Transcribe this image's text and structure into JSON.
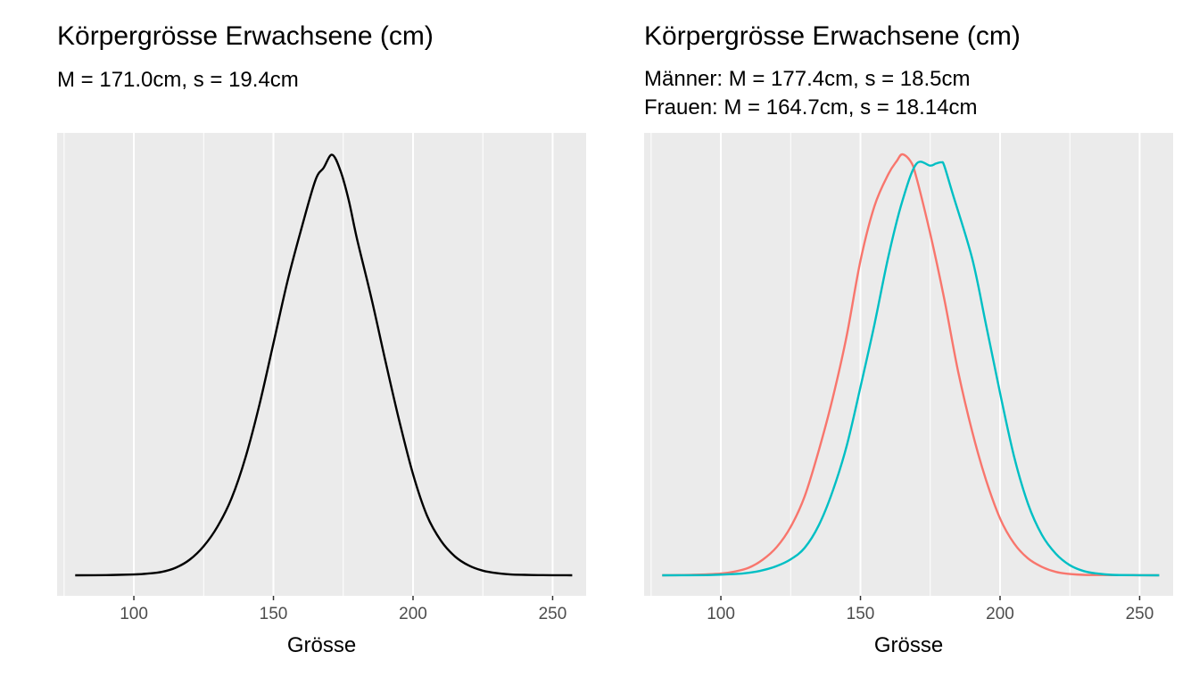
{
  "chart_data": [
    {
      "type": "line",
      "title": "Körpergrösse Erwachsene (cm)",
      "subtitle": [
        "M = 171.0cm, s = 19.4cm"
      ],
      "xlabel": "Grösse",
      "ylabel": "",
      "xlim": [
        72.5,
        262
      ],
      "ylim": [
        0,
        1
      ],
      "xticks": [
        100,
        150,
        200,
        250
      ],
      "xtick_labels": [
        "100",
        "150",
        "200",
        "250"
      ],
      "grid": true,
      "legend": "none",
      "series": [
        {
          "color": "#000000",
          "x": [
            79,
            90,
            100,
            105,
            110,
            115,
            120,
            125,
            130,
            135,
            140,
            145,
            150,
            155,
            160,
            165,
            168,
            171,
            174,
            177,
            180,
            185,
            190,
            195,
            200,
            205,
            210,
            215,
            220,
            225,
            230,
            235,
            240,
            245,
            250,
            257
          ],
          "y": [
            0,
            0.0005,
            0.002,
            0.004,
            0.008,
            0.018,
            0.037,
            0.069,
            0.116,
            0.183,
            0.28,
            0.406,
            0.551,
            0.698,
            0.823,
            0.938,
            0.968,
            0.999,
            0.961,
            0.89,
            0.797,
            0.661,
            0.512,
            0.369,
            0.24,
            0.142,
            0.082,
            0.045,
            0.023,
            0.011,
            0.005,
            0.002,
            0.001,
            0.0005,
            0.0002,
            0
          ]
        }
      ]
    },
    {
      "type": "line",
      "title": "Körpergrösse Erwachsene (cm)",
      "subtitle": [
        "Männer: M = 177.4cm, s = 18.5cm",
        "Frauen: M = 164.7cm, s = 18.14cm"
      ],
      "xlabel": "Grösse",
      "ylabel": "",
      "xlim": [
        72.5,
        262
      ],
      "ylim": [
        0,
        1
      ],
      "xticks": [
        100,
        150,
        200,
        250
      ],
      "xtick_labels": [
        "100",
        "150",
        "200",
        "250"
      ],
      "grid": true,
      "legend": "none",
      "series": [
        {
          "color": "#F8766D",
          "x": [
            79,
            90,
            100,
            105,
            110,
            115,
            120,
            125,
            130,
            135,
            140,
            145,
            150,
            155,
            160,
            163,
            165,
            168,
            170,
            175,
            180,
            185,
            190,
            195,
            200,
            205,
            210,
            215,
            220,
            225,
            230,
            240,
            250,
            257
          ],
          "y": [
            0,
            0.001,
            0.004,
            0.009,
            0.018,
            0.037,
            0.067,
            0.115,
            0.187,
            0.295,
            0.419,
            0.567,
            0.747,
            0.877,
            0.953,
            0.984,
            1.0,
            0.983,
            0.946,
            0.811,
            0.657,
            0.484,
            0.342,
            0.226,
            0.135,
            0.076,
            0.04,
            0.02,
            0.008,
            0.003,
            0.001,
            0.0005,
            0.0002,
            0
          ]
        },
        {
          "color": "#00BFC4",
          "x": [
            79,
            95,
            105,
            110,
            115,
            120,
            125,
            130,
            135,
            140,
            145,
            150,
            155,
            160,
            165,
            170,
            175,
            177,
            179,
            180,
            183,
            190,
            195,
            200,
            205,
            210,
            215,
            220,
            225,
            230,
            235,
            240,
            250,
            257
          ],
          "y": [
            0,
            0.0005,
            0.003,
            0.006,
            0.012,
            0.022,
            0.038,
            0.065,
            0.118,
            0.199,
            0.306,
            0.447,
            0.596,
            0.757,
            0.889,
            0.977,
            0.973,
            0.978,
            0.981,
            0.973,
            0.907,
            0.753,
            0.595,
            0.433,
            0.283,
            0.17,
            0.096,
            0.051,
            0.024,
            0.01,
            0.004,
            0.001,
            0.0003,
            0
          ]
        }
      ]
    }
  ]
}
